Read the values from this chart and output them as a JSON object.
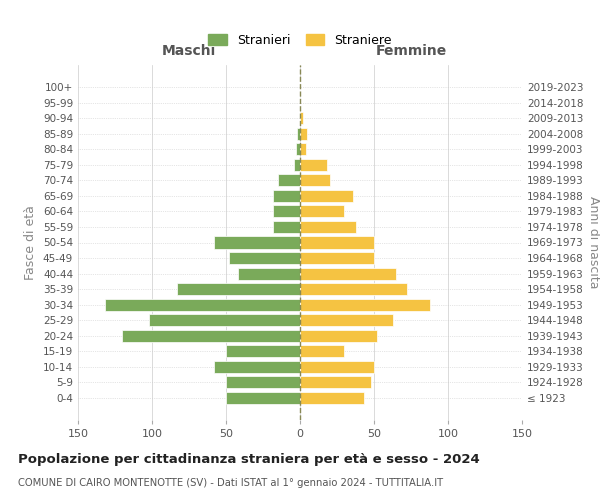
{
  "age_groups": [
    "100+",
    "95-99",
    "90-94",
    "85-89",
    "80-84",
    "75-79",
    "70-74",
    "65-69",
    "60-64",
    "55-59",
    "50-54",
    "45-49",
    "40-44",
    "35-39",
    "30-34",
    "25-29",
    "20-24",
    "15-19",
    "10-14",
    "5-9",
    "0-4"
  ],
  "birth_years": [
    "≤ 1923",
    "1924-1928",
    "1929-1933",
    "1934-1938",
    "1939-1943",
    "1944-1948",
    "1949-1953",
    "1954-1958",
    "1959-1963",
    "1964-1968",
    "1969-1973",
    "1974-1978",
    "1979-1983",
    "1984-1988",
    "1989-1993",
    "1994-1998",
    "1999-2003",
    "2004-2008",
    "2009-2013",
    "2014-2018",
    "2019-2023"
  ],
  "maschi": [
    0,
    0,
    0,
    2,
    3,
    4,
    15,
    18,
    18,
    18,
    58,
    48,
    42,
    83,
    132,
    102,
    120,
    50,
    58,
    50,
    50
  ],
  "femmine": [
    0,
    0,
    2,
    5,
    4,
    18,
    20,
    36,
    30,
    38,
    50,
    50,
    65,
    72,
    88,
    63,
    52,
    30,
    50,
    48,
    43
  ],
  "color_maschi": "#7aaa5a",
  "color_femmine": "#f5c342",
  "grid_color": "#cccccc",
  "center_line_color": "#888855",
  "xlim": 150,
  "title": "Popolazione per cittadinanza straniera per età e sesso - 2024",
  "subtitle": "COMUNE DI CAIRO MONTENOTTE (SV) - Dati ISTAT al 1° gennaio 2024 - TUTTITALIA.IT",
  "ylabel_left": "Fasce di età",
  "ylabel_right": "Anni di nascita",
  "label_maschi": "Maschi",
  "label_femmine": "Femmine",
  "legend_stranieri": "Stranieri",
  "legend_straniere": "Straniere",
  "background_color": "#ffffff"
}
